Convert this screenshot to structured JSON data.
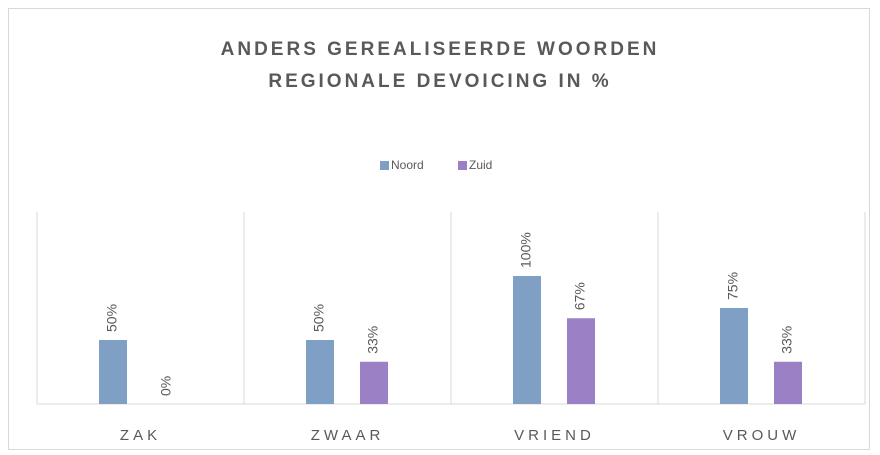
{
  "chart_data": {
    "type": "bar",
    "title": "ANDERS GEREALISEERDE WOORDEN REGIONALE DEVOICING IN %",
    "categories": [
      "ZAK",
      "ZWAAR",
      "VRIEND",
      "VROUW"
    ],
    "series": [
      {
        "name": "Noord",
        "color": "#7f9fc5",
        "values": [
          50,
          50,
          100,
          75
        ],
        "value_labels": [
          "50%",
          "50%",
          "100%",
          "75%"
        ]
      },
      {
        "name": "Zuid",
        "color": "#9b80c6",
        "values": [
          0,
          33,
          67,
          33
        ],
        "value_labels": [
          "0%",
          "33%",
          "67%",
          "33%"
        ]
      }
    ],
    "ylim": [
      0,
      150
    ],
    "legend": "top"
  }
}
